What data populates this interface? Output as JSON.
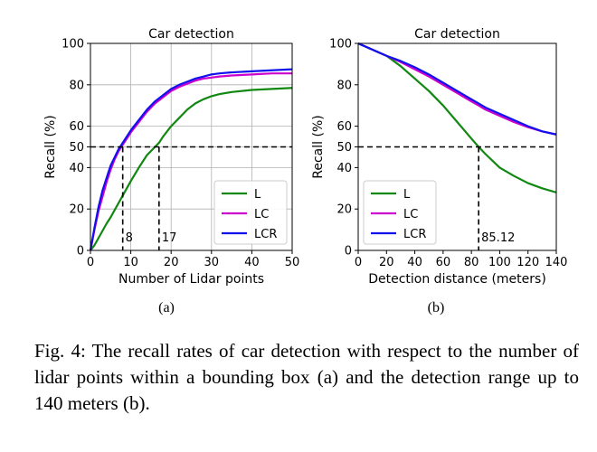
{
  "figure": {
    "caption": "Fig. 4: The recall rates of car detection with respect to the number of lidar points within a bounding box (a) and the detection range up to 140 meters (b).",
    "panels": [
      {
        "label": "(a)"
      },
      {
        "label": "(b)"
      }
    ]
  },
  "chart_data": [
    {
      "type": "line",
      "title": "Car detection",
      "xlabel": "Number of Lidar points",
      "ylabel": "Recall (%)",
      "xlim": [
        0,
        50
      ],
      "ylim": [
        0,
        100
      ],
      "xticks": [
        0,
        10,
        20,
        30,
        40,
        50
      ],
      "yticks": [
        0,
        20,
        40,
        50,
        60,
        80,
        100
      ],
      "grid": true,
      "legend_position": "lower right",
      "x": [
        0,
        1,
        2,
        3,
        4,
        5,
        6,
        7,
        8,
        9,
        10,
        12,
        14,
        16,
        17,
        18,
        20,
        22,
        24,
        26,
        28,
        30,
        32,
        35,
        40,
        45,
        50
      ],
      "series": [
        {
          "name": "L",
          "color": "#118811",
          "values": [
            0,
            2.5,
            6,
            9.5,
            13,
            16,
            19.5,
            23,
            26.5,
            30,
            33.5,
            40,
            46,
            50,
            52,
            55,
            60,
            64,
            68,
            71,
            73,
            74.5,
            75.5,
            76.5,
            77.5,
            78,
            78.5
          ]
        },
        {
          "name": "LC",
          "color": "#cc00cc",
          "values": [
            0,
            10,
            19,
            26,
            33,
            39,
            44,
            48,
            51,
            54,
            57,
            62,
            67,
            71,
            72.5,
            74,
            77,
            79,
            80.5,
            82,
            83,
            83.5,
            84,
            84.5,
            85,
            85.5,
            85.5
          ]
        },
        {
          "name": "LCR",
          "color": "#1111ee",
          "values": [
            0,
            11,
            21,
            29,
            35,
            41,
            45,
            49,
            52,
            55,
            58,
            63,
            68,
            72,
            73.5,
            75,
            78,
            80,
            81.5,
            83,
            84,
            85,
            85.5,
            86,
            86.5,
            87,
            87.5
          ]
        }
      ],
      "reference_lines": [
        {
          "axis": "y",
          "value": 50
        },
        {
          "axis": "x",
          "value": 8,
          "label": "8"
        },
        {
          "axis": "x",
          "value": 17,
          "label": "17"
        }
      ]
    },
    {
      "type": "line",
      "title": "Car detection",
      "xlabel": "Detection distance (meters)",
      "ylabel": "Recall (%)",
      "xlim": [
        0,
        140
      ],
      "ylim": [
        0,
        100
      ],
      "xticks": [
        0,
        20,
        40,
        60,
        80,
        100,
        120,
        140
      ],
      "yticks": [
        0,
        20,
        40,
        50,
        60,
        80,
        100
      ],
      "grid": false,
      "legend_position": "lower left",
      "x": [
        0,
        10,
        20,
        30,
        40,
        50,
        60,
        70,
        80,
        85.12,
        90,
        100,
        110,
        120,
        130,
        140
      ],
      "series": [
        {
          "name": "L",
          "color": "#118811",
          "values": [
            100,
            97,
            94,
            89,
            83,
            77,
            70,
            62,
            54,
            50,
            46.5,
            40,
            36,
            32.5,
            30,
            28
          ]
        },
        {
          "name": "LC",
          "color": "#cc00cc",
          "values": [
            100,
            97,
            94,
            91,
            87.5,
            84,
            80,
            76,
            72,
            70,
            68,
            65,
            62,
            59.5,
            57.5,
            56
          ]
        },
        {
          "name": "LCR",
          "color": "#1111ee",
          "values": [
            100,
            97,
            94,
            91.5,
            88.5,
            85,
            81,
            77,
            73,
            71,
            69,
            66,
            63,
            60,
            57.5,
            56
          ]
        }
      ],
      "reference_lines": [
        {
          "axis": "y",
          "value": 50
        },
        {
          "axis": "x",
          "value": 85.12,
          "label": "85.12"
        }
      ]
    }
  ]
}
